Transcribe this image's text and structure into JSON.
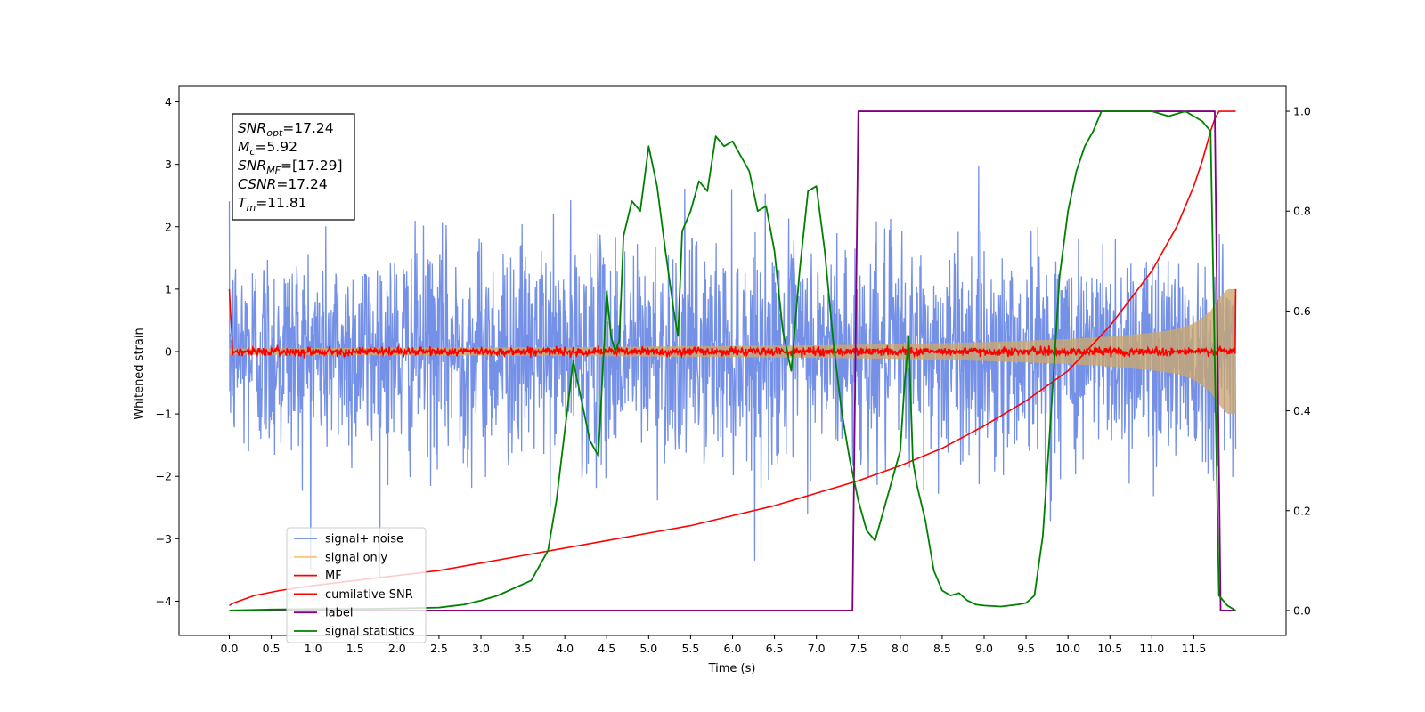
{
  "chart_data": {
    "type": "line",
    "title": "",
    "xlabel": "Time (s)",
    "ylabel": "Whitened strain",
    "xlim": [
      -0.6,
      12.6
    ],
    "ylim": [
      -4.55,
      4.25
    ],
    "y2lim": [
      -0.05,
      1.05
    ],
    "x_ticks": [
      "0.0",
      "0.5",
      "1.0",
      "1.5",
      "2.0",
      "2.5",
      "3.0",
      "3.5",
      "4.0",
      "4.5",
      "5.0",
      "5.5",
      "6.0",
      "6.5",
      "7.0",
      "7.5",
      "8.0",
      "8.5",
      "9.0",
      "9.5",
      "10.0",
      "10.5",
      "11.0",
      "11.5"
    ],
    "y_ticks": [
      "4",
      "3",
      "2",
      "1",
      "0",
      "−1",
      "−2",
      "−3",
      "−4"
    ],
    "y2_ticks": [
      "1.0",
      "0.8",
      "0.6",
      "0.4",
      "0.2",
      "0.0"
    ],
    "grid": false,
    "legend_position": "lower-left",
    "legend": [
      {
        "label": "signal+ noise",
        "color": "#6d8ae6"
      },
      {
        "label": "signal only",
        "color": "#f5c77e"
      },
      {
        "label": "MF",
        "color": "#ff0000"
      },
      {
        "label": "cumilative SNR",
        "color": "#ff0000"
      },
      {
        "label": "label",
        "color": "#800080"
      },
      {
        "label": "signal statistics",
        "color": "#008000"
      }
    ],
    "annotations": [
      {
        "name": "SNR",
        "sub": "opt",
        "value": "=17.24"
      },
      {
        "name": "M",
        "sub": "c",
        "value": "=5.92"
      },
      {
        "name": "SNR",
        "sub": "MF",
        "value": "=[17.29]"
      },
      {
        "name": "CSNR",
        "sub": "",
        "value": "=17.24"
      },
      {
        "name": "T",
        "sub": "m",
        "value": "=11.81"
      }
    ],
    "series": [
      {
        "name": "signal+ noise",
        "axis": "left",
        "color": "#6d8ae6",
        "description_envelope": "noise band, approx. ±1.4 typical, peaks to ±3.7",
        "x_range": [
          0.0,
          12.0
        ],
        "typical_amplitude": 1.4,
        "max_peak": 3.7
      },
      {
        "name": "signal only",
        "axis": "left",
        "color": "#f5c77e",
        "x": [
          0.0,
          2.0,
          4.0,
          6.0,
          7.0,
          8.0,
          9.0,
          10.0,
          10.5,
          11.0,
          11.3,
          11.5,
          11.7,
          11.8,
          11.9,
          12.0
        ],
        "envelope": [
          0.05,
          0.06,
          0.07,
          0.09,
          0.1,
          0.12,
          0.15,
          0.2,
          0.24,
          0.3,
          0.36,
          0.45,
          0.65,
          0.85,
          1.0,
          1.0
        ]
      },
      {
        "name": "MF",
        "axis": "left",
        "color": "#ff0000",
        "x_range": [
          0.0,
          12.0
        ],
        "typical_amplitude": 0.06,
        "start_value": 1.0,
        "end_value": 1.0
      },
      {
        "name": "cumilative SNR",
        "axis": "right",
        "color": "#ff0000",
        "x": [
          0.0,
          0.05,
          0.3,
          0.6,
          1.0,
          1.5,
          2.0,
          2.5,
          3.0,
          3.5,
          4.0,
          4.5,
          5.0,
          5.5,
          6.0,
          6.5,
          7.0,
          7.5,
          8.0,
          8.5,
          9.0,
          9.5,
          10.0,
          10.5,
          11.0,
          11.3,
          11.5,
          11.6,
          11.7,
          11.75,
          11.8,
          12.0
        ],
        "values": [
          0.01,
          0.015,
          0.03,
          0.04,
          0.05,
          0.06,
          0.07,
          0.08,
          0.095,
          0.11,
          0.125,
          0.14,
          0.155,
          0.17,
          0.19,
          0.21,
          0.235,
          0.26,
          0.29,
          0.325,
          0.37,
          0.42,
          0.48,
          0.57,
          0.68,
          0.77,
          0.85,
          0.9,
          0.96,
          0.985,
          1.0,
          1.0
        ]
      },
      {
        "name": "label",
        "axis": "right",
        "color": "#800080",
        "x": [
          0.0,
          7.43,
          7.5,
          11.75,
          11.82,
          12.0
        ],
        "values": [
          0.0,
          0.0,
          1.0,
          1.0,
          0.0,
          0.0
        ]
      },
      {
        "name": "signal statistics",
        "axis": "right",
        "color": "#008000",
        "x": [
          0.0,
          0.5,
          1.0,
          1.5,
          2.0,
          2.5,
          2.8,
          3.0,
          3.2,
          3.4,
          3.6,
          3.8,
          3.9,
          4.0,
          4.1,
          4.2,
          4.3,
          4.4,
          4.5,
          4.55,
          4.6,
          4.65,
          4.7,
          4.8,
          4.9,
          5.0,
          5.1,
          5.2,
          5.3,
          5.35,
          5.4,
          5.5,
          5.6,
          5.7,
          5.8,
          5.9,
          6.0,
          6.1,
          6.2,
          6.3,
          6.4,
          6.5,
          6.6,
          6.7,
          6.8,
          6.9,
          7.0,
          7.1,
          7.2,
          7.3,
          7.4,
          7.5,
          7.6,
          7.7,
          7.8,
          7.9,
          8.0,
          8.05,
          8.1,
          8.15,
          8.2,
          8.3,
          8.4,
          8.5,
          8.6,
          8.7,
          8.8,
          8.9,
          9.0,
          9.2,
          9.4,
          9.5,
          9.6,
          9.7,
          9.8,
          9.9,
          10.0,
          10.1,
          10.2,
          10.3,
          10.4,
          10.6,
          10.8,
          11.0,
          11.2,
          11.4,
          11.6,
          11.7,
          11.75,
          11.8,
          11.9,
          12.0
        ],
        "values": [
          0.0,
          0.002,
          0.003,
          0.003,
          0.004,
          0.006,
          0.012,
          0.02,
          0.03,
          0.045,
          0.06,
          0.12,
          0.22,
          0.36,
          0.5,
          0.42,
          0.34,
          0.31,
          0.64,
          0.55,
          0.52,
          0.54,
          0.75,
          0.82,
          0.8,
          0.93,
          0.85,
          0.72,
          0.6,
          0.55,
          0.76,
          0.8,
          0.86,
          0.84,
          0.95,
          0.93,
          0.94,
          0.91,
          0.88,
          0.8,
          0.81,
          0.72,
          0.56,
          0.48,
          0.68,
          0.84,
          0.85,
          0.72,
          0.54,
          0.4,
          0.3,
          0.22,
          0.16,
          0.14,
          0.2,
          0.26,
          0.32,
          0.45,
          0.55,
          0.3,
          0.25,
          0.18,
          0.08,
          0.04,
          0.03,
          0.035,
          0.02,
          0.012,
          0.01,
          0.008,
          0.012,
          0.015,
          0.03,
          0.15,
          0.4,
          0.67,
          0.8,
          0.88,
          0.93,
          0.96,
          1.0,
          1.0,
          1.0,
          1.0,
          0.99,
          1.0,
          0.98,
          0.96,
          0.5,
          0.03,
          0.01,
          0.0
        ]
      }
    ]
  }
}
